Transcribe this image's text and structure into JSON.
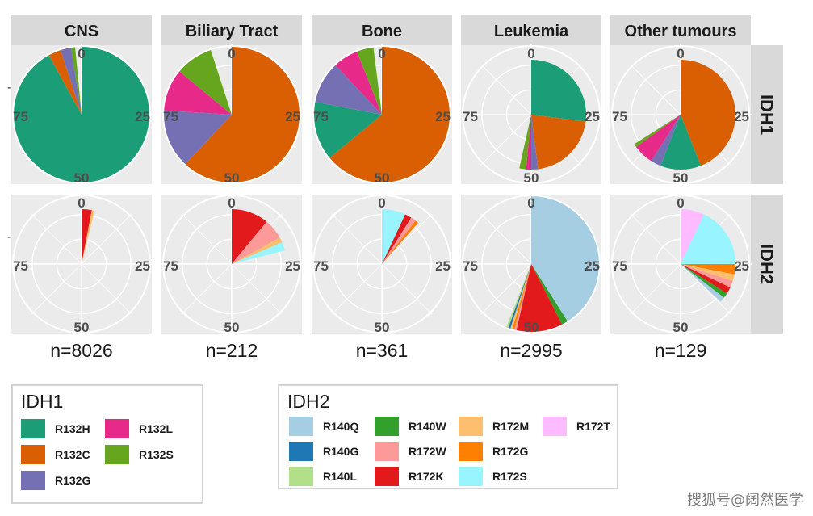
{
  "chart_data": {
    "type": "pie",
    "coord": "polar",
    "facet_columns": [
      "CNS",
      "Biliary Tract",
      "Bone",
      "Leukemia",
      "Other tumours"
    ],
    "facet_rows": [
      "IDH1",
      "IDH2"
    ],
    "angle_axis": {
      "range": [
        0,
        100
      ],
      "tick_labels": [
        "0",
        "25",
        "50",
        "75"
      ]
    },
    "radial_tick_label": "-",
    "sample_sizes": [
      "n=8026",
      "n=212",
      "n=361",
      "n=2995",
      "n=129"
    ],
    "panels": [
      {
        "row": "IDH1",
        "column": "CNS",
        "radius": 1.0,
        "slices": [
          {
            "variant": "R132H",
            "value": 92
          },
          {
            "variant": "R132C",
            "value": 3
          },
          {
            "variant": "R132G",
            "value": 2.5
          },
          {
            "variant": "R132S",
            "value": 1
          }
        ]
      },
      {
        "row": "IDH1",
        "column": "Biliary Tract",
        "radius": 1.0,
        "slices": [
          {
            "variant": "R132C",
            "value": 62
          },
          {
            "variant": "R132G",
            "value": 14
          },
          {
            "variant": "R132L",
            "value": 10
          },
          {
            "variant": "R132S",
            "value": 9
          }
        ]
      },
      {
        "row": "IDH1",
        "column": "Bone",
        "radius": 1.0,
        "slices": [
          {
            "variant": "R132C",
            "value": 64
          },
          {
            "variant": "R132H",
            "value": 14
          },
          {
            "variant": "R132G",
            "value": 10
          },
          {
            "variant": "R132L",
            "value": 6
          },
          {
            "variant": "R132S",
            "value": 4
          }
        ]
      },
      {
        "row": "IDH1",
        "column": "Leukemia",
        "radius": 0.8,
        "slices": [
          {
            "variant": "R132H",
            "value": 27
          },
          {
            "variant": "R132C",
            "value": 21
          },
          {
            "variant": "R132G",
            "value": 2
          },
          {
            "variant": "R132L",
            "value": 1.5
          },
          {
            "variant": "R132S",
            "value": 2
          }
        ]
      },
      {
        "row": "IDH1",
        "column": "Other tumours",
        "radius": 0.8,
        "slices": [
          {
            "variant": "R132C",
            "value": 44
          },
          {
            "variant": "R132H",
            "value": 12
          },
          {
            "variant": "R132G",
            "value": 3
          },
          {
            "variant": "R132L",
            "value": 6
          },
          {
            "variant": "R132S",
            "value": 1
          }
        ]
      },
      {
        "row": "IDH2",
        "column": "CNS",
        "radius": 0.8,
        "slices": [
          {
            "variant": "R172K",
            "value": 3
          },
          {
            "variant": "R172M",
            "value": 0.8
          }
        ]
      },
      {
        "row": "IDH2",
        "column": "Biliary Tract",
        "radius": 0.8,
        "slices": [
          {
            "variant": "R172K",
            "value": 11
          },
          {
            "variant": "R172W",
            "value": 6
          },
          {
            "variant": "R172M",
            "value": 1.5
          },
          {
            "variant": "R172S",
            "value": 2.5
          }
        ]
      },
      {
        "row": "IDH2",
        "column": "Bone",
        "radius": 0.8,
        "slices": [
          {
            "variant": "R172S",
            "value": 7
          },
          {
            "variant": "R172K",
            "value": 2
          },
          {
            "variant": "R172W",
            "value": 1.5
          },
          {
            "variant": "R172G",
            "value": 1
          }
        ]
      },
      {
        "row": "IDH2",
        "column": "Leukemia",
        "radius": 1.0,
        "slices": [
          {
            "variant": "R140Q",
            "value": 41
          },
          {
            "variant": "R140W",
            "value": 1.5
          },
          {
            "variant": "R172K",
            "value": 11
          },
          {
            "variant": "R172W",
            "value": 0.5
          },
          {
            "variant": "R172G",
            "value": 0.5
          },
          {
            "variant": "R172M",
            "value": 0.5
          },
          {
            "variant": "R140G",
            "value": 0.5
          },
          {
            "variant": "R140L",
            "value": 0.5
          }
        ]
      },
      {
        "row": "IDH2",
        "column": "Other tumours",
        "radius": 0.8,
        "slices": [
          {
            "variant": "R172T",
            "value": 7
          },
          {
            "variant": "R172S",
            "value": 18
          },
          {
            "variant": "R172G",
            "value": 3
          },
          {
            "variant": "R172M",
            "value": 2
          },
          {
            "variant": "R172W",
            "value": 2
          },
          {
            "variant": "R172K",
            "value": 2
          },
          {
            "variant": "R140W",
            "value": 1.5
          },
          {
            "variant": "R140Q",
            "value": 1.5
          }
        ]
      }
    ]
  },
  "legends": {
    "idh1": {
      "title": "IDH1",
      "items": [
        {
          "label": "R132H",
          "color": "#1b9e77"
        },
        {
          "label": "R132C",
          "color": "#d95f02"
        },
        {
          "label": "R132G",
          "color": "#7570b3"
        },
        {
          "label": "R132L",
          "color": "#e7298a"
        },
        {
          "label": "R132S",
          "color": "#66a61e"
        }
      ]
    },
    "idh2": {
      "title": "IDH2",
      "items": [
        {
          "label": "R140Q",
          "color": "#a6cee3"
        },
        {
          "label": "R140G",
          "color": "#1f78b4"
        },
        {
          "label": "R140L",
          "color": "#b2df8a"
        },
        {
          "label": "R140W",
          "color": "#33a02c"
        },
        {
          "label": "R172W",
          "color": "#fb9a99"
        },
        {
          "label": "R172K",
          "color": "#e31a1c"
        },
        {
          "label": "R172M",
          "color": "#fdbf6f"
        },
        {
          "label": "R172G",
          "color": "#ff7f00"
        },
        {
          "label": "R172S",
          "color": "#98f5ff"
        },
        {
          "label": "R172T",
          "color": "#ffbbff"
        }
      ]
    }
  },
  "colors": {
    "panel_background": "#ebebeb",
    "strip_background": "#d9d9d9",
    "grid": "#ffffff"
  },
  "watermark": "搜狐号@阔然医学"
}
